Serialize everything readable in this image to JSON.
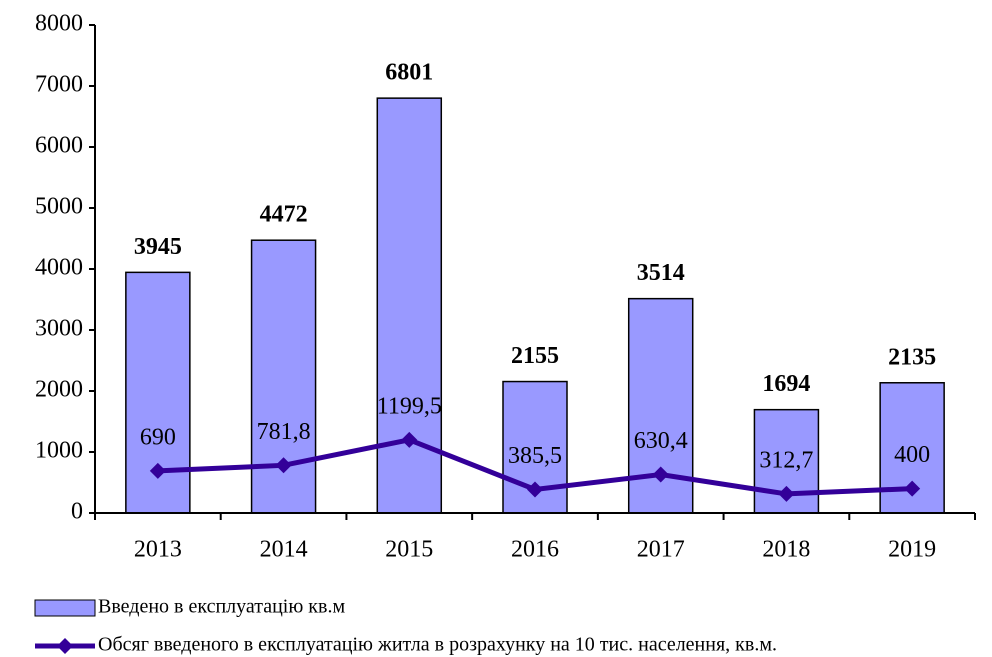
{
  "chart_data": {
    "type": "bar",
    "categories": [
      "2013",
      "2014",
      "2015",
      "2016",
      "2017",
      "2018",
      "2019"
    ],
    "series": [
      {
        "name": "Введено в експлуатацію кв.м",
        "type": "bar",
        "color": "#9999ff",
        "values": [
          3945,
          4472,
          6801,
          2155,
          3514,
          1694,
          2135
        ]
      },
      {
        "name": "Обсяг введеного в експлуатацію житла в розрахунку на 10 тис. населення, кв.м.",
        "type": "line",
        "color": "#330099",
        "values": [
          690,
          781.8,
          1199.5,
          385.5,
          630.4,
          312.7,
          400
        ],
        "value_labels": [
          "690",
          "781,8",
          "1199,5",
          "385,5",
          "630,4",
          "312,7",
          "400"
        ]
      }
    ],
    "ylim": [
      0,
      8000
    ],
    "yticks": [
      0,
      1000,
      2000,
      3000,
      4000,
      5000,
      6000,
      7000,
      8000
    ],
    "legend": "bottom"
  }
}
